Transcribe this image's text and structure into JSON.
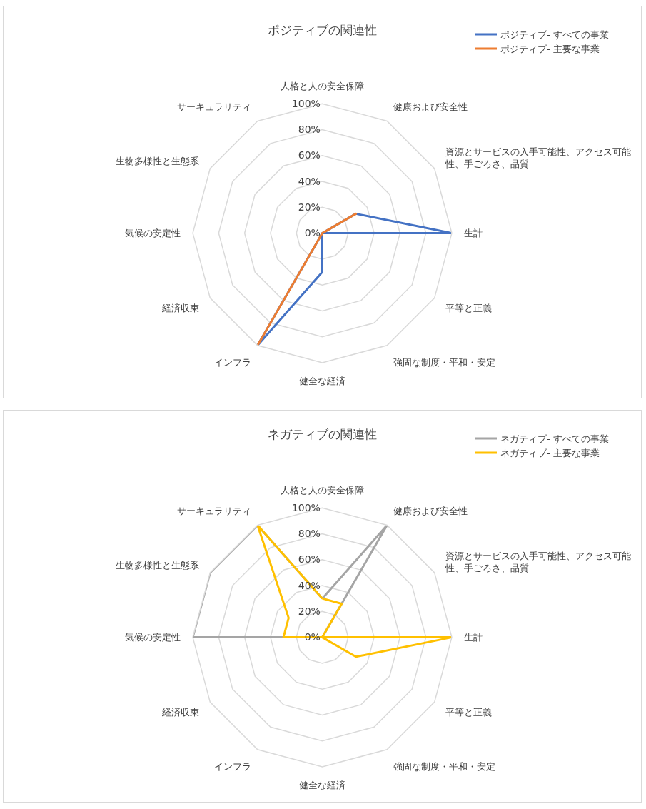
{
  "chart_data": [
    {
      "type": "radar",
      "title": "ポジティブの関連性",
      "categories": [
        "人格と人の安全保障",
        "健康および安全性",
        "資源とサービスの入手可能性、アクセス可能性、手ごろさ、品質",
        "生計",
        "平等と正義",
        "強固な制度・平和・安定",
        "健全な経済",
        "インフラ",
        "経済収束",
        "気候の安定性",
        "生物多様性と生態系",
        "サーキュラリティ"
      ],
      "series": [
        {
          "name": "ポジティブ- すべての事業",
          "color": "#4472c4",
          "values": [
            0,
            0,
            30,
            100,
            0,
            0,
            30,
            100,
            0,
            0,
            0,
            0
          ]
        },
        {
          "name": "ポジティブ- 主要な事業",
          "color": "#ed7d31",
          "values": [
            0,
            0,
            30,
            0,
            0,
            0,
            0,
            100,
            0,
            0,
            0,
            0
          ]
        }
      ],
      "ylim": [
        0,
        100
      ],
      "yticks": [
        {
          "value": 0,
          "label": "0%"
        },
        {
          "value": 20,
          "label": "20%"
        },
        {
          "value": 40,
          "label": "40%"
        },
        {
          "value": 60,
          "label": "60%"
        },
        {
          "value": 80,
          "label": "80%"
        },
        {
          "value": 100,
          "label": "100%"
        }
      ],
      "grid": true,
      "legend": "top right",
      "marker": "none",
      "line_style": "solid"
    },
    {
      "type": "radar",
      "title": "ネガティブの関連性",
      "categories": [
        "人格と人の安全保障",
        "健康および安全性",
        "資源とサービスの入手可能性、アクセス可能性、手ごろさ、品質",
        "生計",
        "平等と正義",
        "強固な制度・平和・安定",
        "健全な経済",
        "インフラ",
        "経済収束",
        "気候の安定性",
        "生物多様性と生態系",
        "サーキュラリティ"
      ],
      "series": [
        {
          "name": "ネガティブ- すべての事業",
          "color": "#a5a5a5",
          "values": [
            30,
            100,
            0,
            0,
            0,
            0,
            0,
            0,
            0,
            100,
            100,
            100
          ]
        },
        {
          "name": "ネガティブ- 主要な事業",
          "color": "#ffc000",
          "values": [
            30,
            30,
            0,
            100,
            30,
            0,
            0,
            0,
            0,
            30,
            30,
            100
          ]
        }
      ],
      "ylim": [
        0,
        100
      ],
      "yticks": [
        {
          "value": 0,
          "label": "0%"
        },
        {
          "value": 20,
          "label": "20%"
        },
        {
          "value": 40,
          "label": "40%"
        },
        {
          "value": 60,
          "label": "60%"
        },
        {
          "value": 80,
          "label": "80%"
        },
        {
          "value": 100,
          "label": "100%"
        }
      ],
      "grid": true,
      "legend": "top right",
      "marker": "none",
      "line_style": "solid"
    }
  ]
}
